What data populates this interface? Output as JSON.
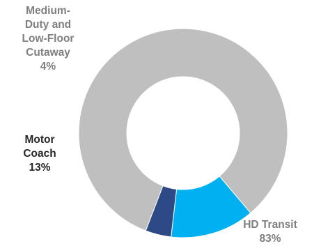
{
  "chart_data": {
    "type": "pie",
    "style": "donut",
    "title": "",
    "slices": [
      {
        "label_lines": [
          "Medium-",
          "Duty and",
          "Low-Floor",
          "Cutaway"
        ],
        "percent_label": "4%",
        "value": 4,
        "color": "#2e4a86",
        "label_color": "#7f7f7f"
      },
      {
        "label_lines": [
          "Motor",
          "Coach"
        ],
        "percent_label": "13%",
        "value": 13,
        "color": "#00b0f0",
        "label_color": "#262626"
      },
      {
        "label_lines": [
          "HD Transit"
        ],
        "percent_label": "83%",
        "value": 83,
        "color": "#bfbfbf",
        "label_color": "#7f7f7f"
      }
    ],
    "legend": "none",
    "start_angle_deg": 249,
    "direction": "counterclockwise"
  }
}
